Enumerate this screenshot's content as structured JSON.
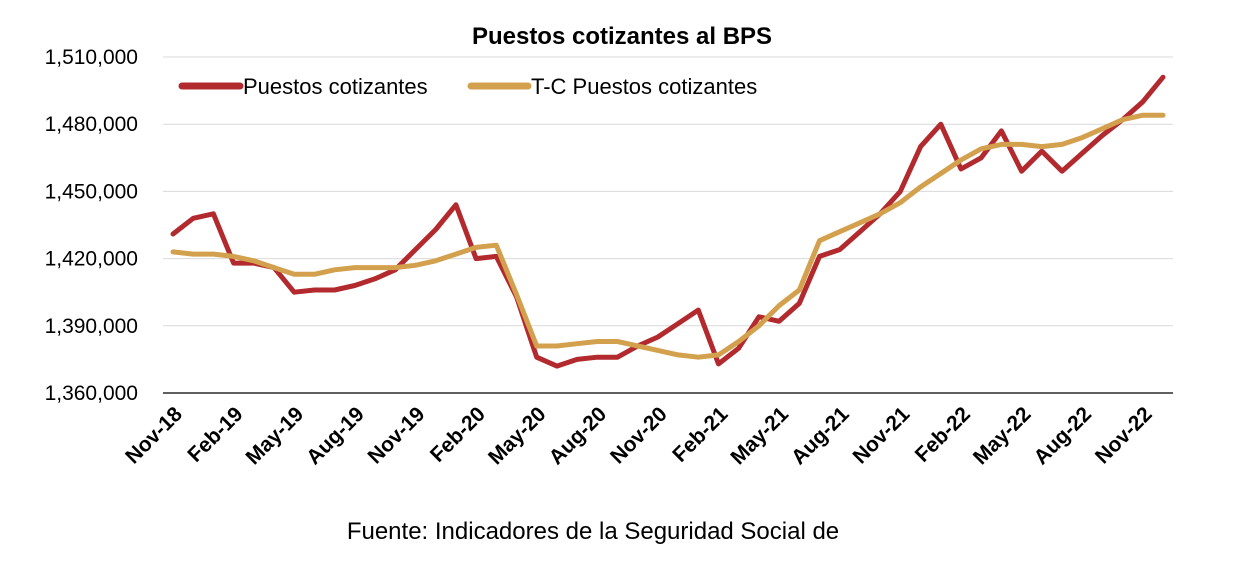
{
  "chart_data": {
    "type": "line",
    "title": "Puestos cotizantes al BPS",
    "source": "Fuente: Indicadores de la Seguridad Social de",
    "ylim": [
      1360000,
      1510000
    ],
    "yticks": [
      1360000,
      1390000,
      1420000,
      1450000,
      1480000,
      1510000
    ],
    "ytick_labels": [
      "1,360,000",
      "1,390,000",
      "1,420,000",
      "1,450,000",
      "1,480,000",
      "1,510,000"
    ],
    "x_tick_labels": [
      "Nov-18",
      "Feb-19",
      "May-19",
      "Aug-19",
      "Nov-19",
      "Feb-20",
      "May-20",
      "Aug-20",
      "Nov-20",
      "Feb-21",
      "May-21",
      "Aug-21",
      "Nov-21",
      "Feb-22",
      "May-22",
      "Aug-22",
      "Nov-22"
    ],
    "x": [
      "Nov-18",
      "Dec-18",
      "Jan-19",
      "Feb-19",
      "Mar-19",
      "Apr-19",
      "May-19",
      "Jun-19",
      "Jul-19",
      "Aug-19",
      "Sep-19",
      "Oct-19",
      "Nov-19",
      "Dec-19",
      "Jan-20",
      "Feb-20",
      "Mar-20",
      "Apr-20",
      "May-20",
      "Jun-20",
      "Jul-20",
      "Aug-20",
      "Sep-20",
      "Oct-20",
      "Nov-20",
      "Dec-20",
      "Jan-21",
      "Feb-21",
      "Mar-21",
      "Apr-21",
      "May-21",
      "Jun-21",
      "Jul-21",
      "Aug-21",
      "Sep-21",
      "Oct-21",
      "Nov-21",
      "Dec-21",
      "Jan-22",
      "Feb-22",
      "Mar-22",
      "Apr-22",
      "May-22",
      "Jun-22",
      "Jul-22",
      "Aug-22",
      "Sep-22",
      "Oct-22",
      "Nov-22",
      "Dec-22"
    ],
    "legend_position": "top-left",
    "grid": true,
    "series": [
      {
        "name": "Puestos cotizantes",
        "color": "#b22a2e",
        "values": [
          1431000,
          1438000,
          1440000,
          1418000,
          1418000,
          1416000,
          1405000,
          1406000,
          1406000,
          1408000,
          1411000,
          1415000,
          1424000,
          1433000,
          1444000,
          1420000,
          1421000,
          1403000,
          1376000,
          1372000,
          1375000,
          1376000,
          1376000,
          1381000,
          1385000,
          1391000,
          1397000,
          1373000,
          1380000,
          1394000,
          1392000,
          1400000,
          1421000,
          1424000,
          1432000,
          1440000,
          1450000,
          1470000,
          1480000,
          1460000,
          1465000,
          1477000,
          1459000,
          1468000,
          1459000,
          1467000,
          1475000,
          1482000,
          1490000,
          1501000
        ]
      },
      {
        "name": "T-C Puestos cotizantes",
        "color": "#d3a04d",
        "values": [
          1423000,
          1422000,
          1422000,
          1421000,
          1419000,
          1416000,
          1413000,
          1413000,
          1415000,
          1416000,
          1416000,
          1416000,
          1417000,
          1419000,
          1422000,
          1425000,
          1426000,
          1404000,
          1381000,
          1381000,
          1382000,
          1383000,
          1383000,
          1381000,
          1379000,
          1377000,
          1376000,
          1377000,
          1383000,
          1390000,
          1399000,
          1406000,
          1428000,
          1432000,
          1436000,
          1440000,
          1445000,
          1452000,
          1458000,
          1464000,
          1469000,
          1471000,
          1471000,
          1470000,
          1471000,
          1474000,
          1478000,
          1482000,
          1484000,
          1484000
        ]
      }
    ]
  }
}
